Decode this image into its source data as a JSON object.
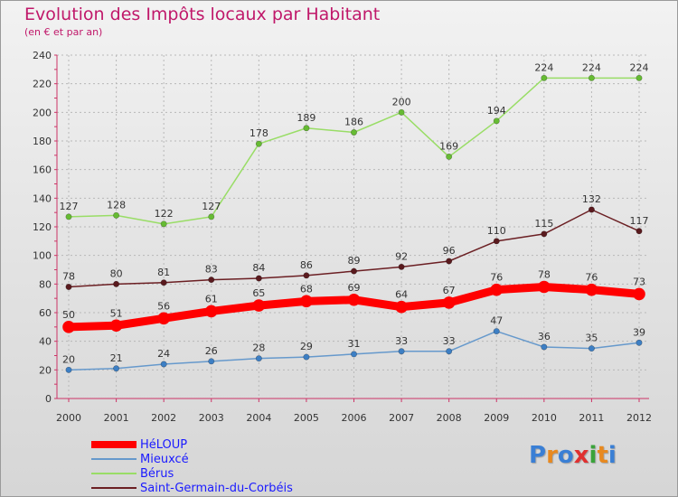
{
  "header": {
    "title": "Evolution des Impôts locaux par Habitant",
    "subtitle": "(en € et par an)"
  },
  "logo": {
    "text": "Proxiti",
    "colors": [
      "#3a7fd5",
      "#e8891f",
      "#3a7fd5",
      "#e03030",
      "#3aa33a",
      "#e8891f",
      "#3a7fd5"
    ]
  },
  "chart_data": {
    "type": "line",
    "categories": [
      "2000",
      "2001",
      "2002",
      "2003",
      "2004",
      "2005",
      "2006",
      "2007",
      "2008",
      "2009",
      "2010",
      "2011",
      "2012"
    ],
    "ylim": [
      0,
      240
    ],
    "yticks": [
      "0",
      "20",
      "40",
      "60",
      "80",
      "100",
      "120",
      "140",
      "160",
      "180",
      "200",
      "220",
      "240"
    ],
    "grid": true,
    "legend_position": "bottom-left",
    "series": [
      {
        "name": "Saint-Germain-du-Corbéis",
        "color": "#6b1f23",
        "marker": "#5a1a1e",
        "width": 1.5,
        "values": [
          78,
          80,
          81,
          83,
          84,
          86,
          89,
          92,
          96,
          110,
          115,
          132,
          117
        ]
      },
      {
        "name": "Bérus",
        "color": "#99dd66",
        "marker": "#66bb33",
        "width": 1.5,
        "values": [
          127,
          128,
          122,
          127,
          178,
          189,
          186,
          200,
          169,
          194,
          224,
          224,
          224
        ]
      },
      {
        "name": "Mieuxcé",
        "color": "#6699cc",
        "marker": "#3d7fc4",
        "width": 1.5,
        "values": [
          20,
          21,
          24,
          26,
          28,
          29,
          31,
          33,
          33,
          47,
          36,
          35,
          39
        ]
      },
      {
        "name": "HéLOUP",
        "color": "#ff0000",
        "marker": "#ff0000",
        "width": 9,
        "values": [
          50,
          51,
          56,
          61,
          65,
          68,
          69,
          64,
          67,
          76,
          78,
          76,
          73
        ]
      }
    ],
    "legend_order": [
      3,
      2,
      1,
      0
    ]
  }
}
